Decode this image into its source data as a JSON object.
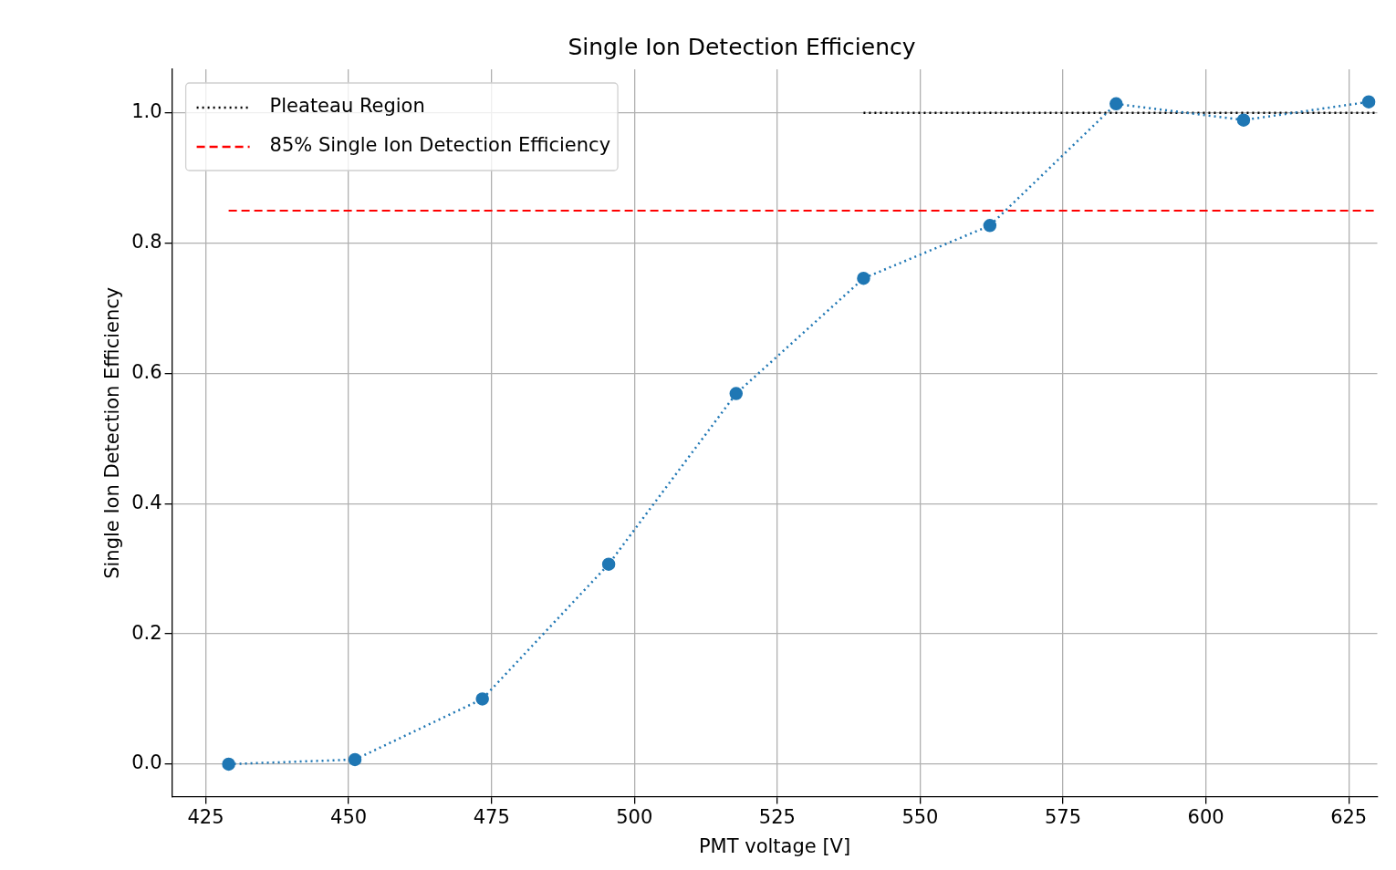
{
  "chart_data": {
    "type": "line",
    "title": "Single Ion Detection Efficiency",
    "xlabel": "PMT voltage [V]",
    "ylabel": "Single Ion Detection Efficiency",
    "xlim": [
      419.1,
      630
    ],
    "xticks": [
      425,
      450,
      475,
      500,
      525,
      550,
      575,
      600,
      625
    ],
    "ylim": [
      -0.05,
      1.067
    ],
    "yticks": [
      {
        "value": 0,
        "label": "0.0"
      },
      0.2,
      0.4,
      0.6,
      0.8,
      {
        "value": 1,
        "label": "1.0"
      }
    ],
    "grid": true,
    "legend": "top left",
    "series": [
      {
        "color": "#1f77b4",
        "marker": "circle",
        "line_style": "dotted",
        "x": [
          429,
          451.1,
          473.4,
          495.5,
          517.8,
          540.1,
          562.2,
          584.3,
          606.6,
          628.5
        ],
        "values": [
          0,
          0.007,
          0.1,
          0.307,
          0.569,
          0.746,
          0.827,
          1.014,
          0.989,
          1.017
        ]
      },
      {
        "name": "Pleateau Region",
        "color": "#000000",
        "marker": "none",
        "line_style": "dotted",
        "x": [
          540.1,
          630
        ],
        "values": [
          1,
          1
        ]
      },
      {
        "name": "85% Single Ion Detection Efficiency",
        "color": "#ff0000",
        "marker": "none",
        "line_style": "dashed",
        "x": [
          429,
          630
        ],
        "values": [
          0.85,
          0.85
        ]
      }
    ]
  }
}
